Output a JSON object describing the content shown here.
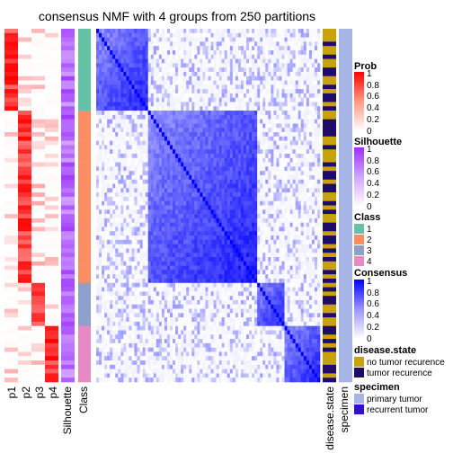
{
  "chart_data": {
    "type": "heatmap",
    "title": "consensus NMF with 4 groups from 250 partitions",
    "n_samples": 82,
    "class_counts": [
      19,
      40,
      10,
      13
    ],
    "class_colors": {
      "1": "#66C2A5",
      "2": "#FC8D62",
      "3": "#8DA0CB",
      "4": "#E78AC3"
    },
    "column_labels": {
      "prob": [
        "p1",
        "p2",
        "p3",
        "p4"
      ],
      "silhouette": "Silhouette",
      "class": "Class",
      "disease": "disease.state",
      "specimen": "specimen"
    },
    "legends": {
      "prob": {
        "title": "Prob",
        "ticks": [
          "1",
          "0.8",
          "0.6",
          "0.4",
          "0.2",
          "0"
        ],
        "low": "#FFFFFF",
        "high": "#FF0000"
      },
      "silhouette": {
        "title": "Silhouette",
        "ticks": [
          "1",
          "0.8",
          "0.6",
          "0.4",
          "0.2",
          "0"
        ],
        "low": "#FFFFFF",
        "high": "#9B30FF"
      },
      "class": {
        "title": "Class",
        "labels": [
          "1",
          "2",
          "3",
          "4"
        ]
      },
      "consensus": {
        "title": "Consensus",
        "ticks": [
          "1",
          "0.8",
          "0.6",
          "0.4",
          "0.2",
          "0"
        ],
        "low": "#FFFFFF",
        "high": "#0000FF"
      },
      "disease_state": {
        "title": "disease.state",
        "labels": [
          "no tumor recurence",
          "tumor recurence"
        ],
        "colors": [
          "#C8A20B",
          "#1F0B6A"
        ]
      },
      "specimen": {
        "title": "specimen",
        "labels": [
          "primary tumor",
          "recurrent tumor"
        ],
        "colors": [
          "#A7B4E6",
          "#3410C4"
        ]
      }
    },
    "disease_pattern": "0001001001100101101001111001000101101100101001101101010010101011001001101010001101",
    "specimen_pattern": "0000000000000000000000000000000000000000000000000000000000000000000000000000000000"
  }
}
